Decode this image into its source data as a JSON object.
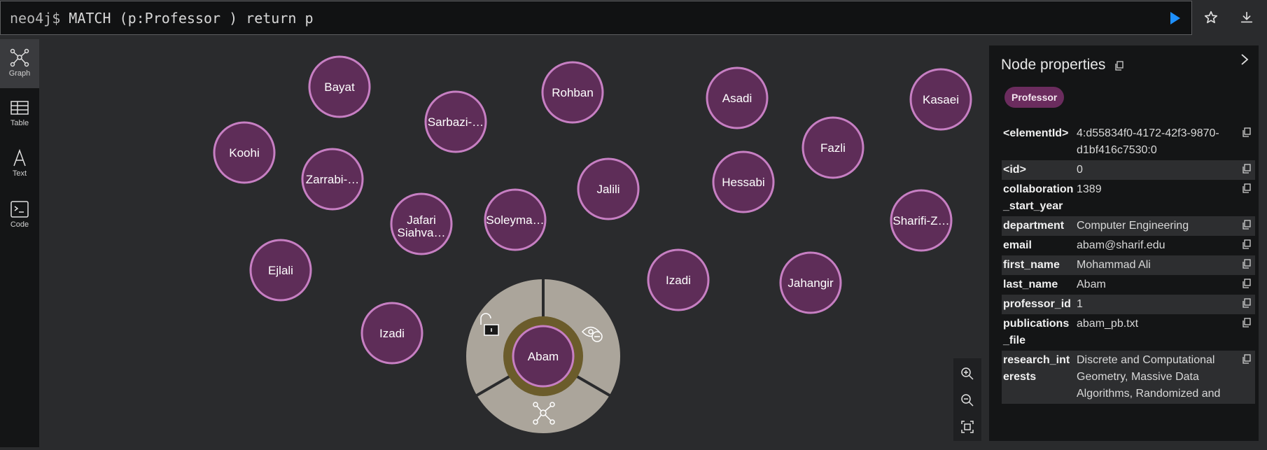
{
  "query": {
    "prompt": "neo4j$",
    "text": " MATCH (p:Professor ) return p"
  },
  "toolbar": {
    "run_icon": "play-icon",
    "favorite_icon": "star-icon",
    "download_icon": "download-icon"
  },
  "sidebar": {
    "items": [
      {
        "label": "Graph",
        "icon": "graph-icon",
        "active": true
      },
      {
        "label": "Table",
        "icon": "table-icon",
        "active": false
      },
      {
        "label": "Text",
        "icon": "text-icon",
        "active": false
      },
      {
        "label": "Code",
        "icon": "code-icon",
        "active": false
      }
    ]
  },
  "graph": {
    "nodes": [
      "Bayat",
      "Rohban",
      "Asadi",
      "Kasaei",
      "Sarbazi-…",
      "Koohi",
      "Fazli",
      "Zarrabi-…",
      "Jalili",
      "Hessabi",
      "Jafari Siahva…",
      "Soleyma…",
      "Sharifi-Z…",
      "Ejlali",
      "Izadi",
      "Jahangir",
      "Izadi",
      "Abam"
    ],
    "selected_node": "Abam",
    "ring_actions": [
      "unlock-icon",
      "hide-icon",
      "expand-icon"
    ]
  },
  "colors": {
    "node_fill": "#5e2d58",
    "node_stroke": "#c77fc3",
    "ring_fill": "#aba59b",
    "selected_ring": "#6b5c2b",
    "accent_blue": "#1e90ff"
  },
  "panel": {
    "title": "Node properties",
    "label_badge": "Professor",
    "properties": [
      {
        "key": "<elementId>",
        "value": "4:d55834f0-4172-42f3-9870-d1bf416c7530:0"
      },
      {
        "key": "<id>",
        "value": "0"
      },
      {
        "key": "collaboration_start_year",
        "value": "1389"
      },
      {
        "key": "department",
        "value": "Computer Engineering"
      },
      {
        "key": "email",
        "value": "abam@sharif.edu"
      },
      {
        "key": "first_name",
        "value": "Mohammad Ali"
      },
      {
        "key": "last_name",
        "value": "Abam"
      },
      {
        "key": "professor_id",
        "value": "1"
      },
      {
        "key": "publications_file",
        "value": "abam_pb.txt"
      },
      {
        "key": "research_interests",
        "value": "Discrete and Computational Geometry, Massive Data Algorithms, Randomized and"
      }
    ]
  }
}
